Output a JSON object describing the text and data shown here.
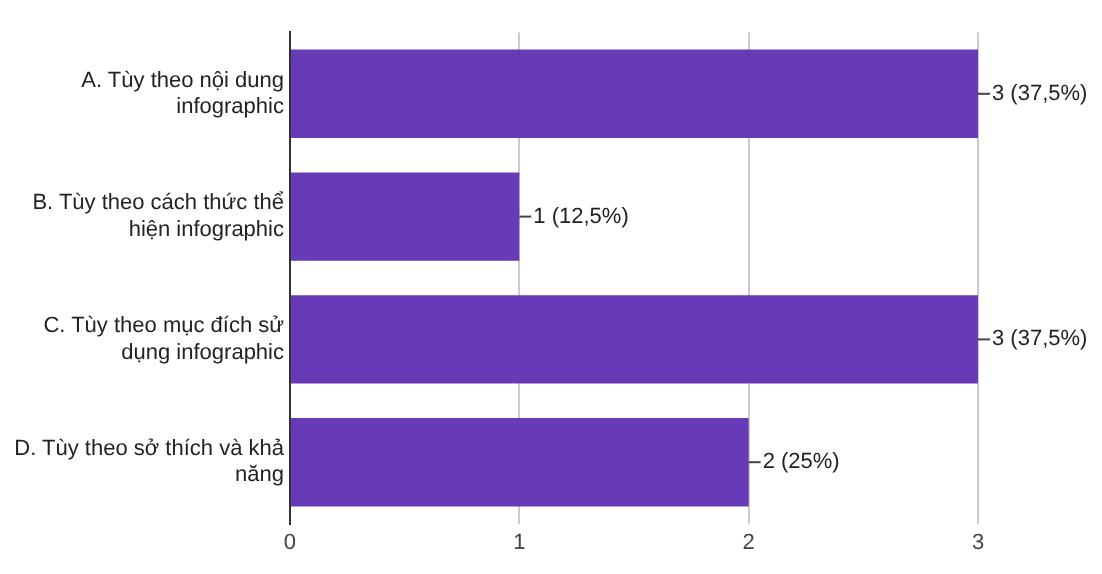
{
  "chart_data": {
    "type": "bar",
    "orientation": "horizontal",
    "categories": [
      "A. Tùy theo nội dung infographic",
      "B. Tùy theo cách thức thể hiện infographic",
      "C. Tùy theo mục đích sử dụng infographic",
      "D. Tùy theo sở thích và khả năng"
    ],
    "values": [
      3,
      1,
      3,
      2
    ],
    "value_labels": [
      "3 (37,5%)",
      "1 (12,5%)",
      "3 (37,5%)",
      "2 (25%)"
    ],
    "color": "#673ab7",
    "xlim": [
      0,
      3
    ],
    "xticks": [
      0,
      1,
      2,
      3
    ],
    "grid": "x",
    "legend": false
  }
}
